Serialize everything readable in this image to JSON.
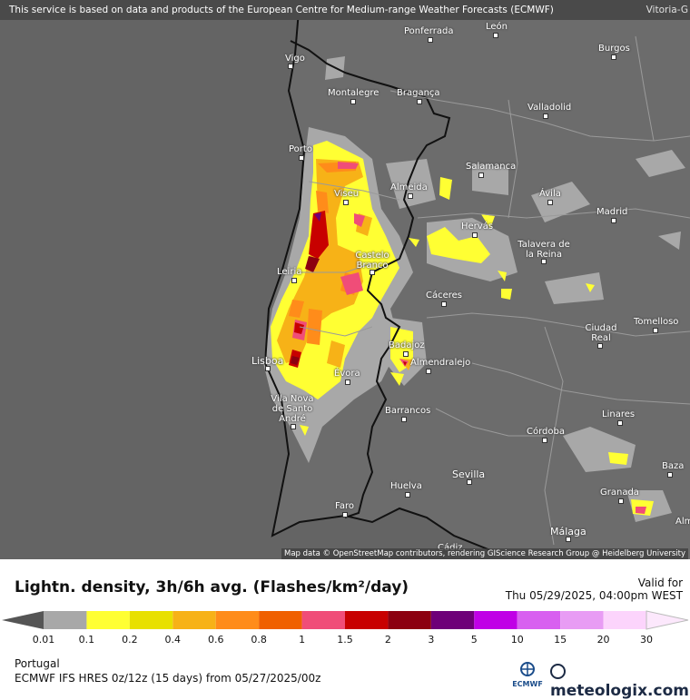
{
  "banner": {
    "text": "This service is based on data and products of the European Centre for Medium-range Weather Forecasts (ECMWF)",
    "corner_label": "Vitoria-G"
  },
  "cities": [
    {
      "key": "ponferrada",
      "name": "Ponferrada"
    },
    {
      "key": "leon",
      "name": "León"
    },
    {
      "key": "burgos",
      "name": "Burgos"
    },
    {
      "key": "vigo",
      "name": "Vigo"
    },
    {
      "key": "montalegre",
      "name": "Montalegre"
    },
    {
      "key": "braganca",
      "name": "Bragança"
    },
    {
      "key": "valladolid",
      "name": "Valladolid"
    },
    {
      "key": "porto",
      "name": "Porto"
    },
    {
      "key": "salamanca",
      "name": "Salamanca"
    },
    {
      "key": "viseu",
      "name": "Viseu"
    },
    {
      "key": "almeida",
      "name": "Almeida"
    },
    {
      "key": "avila",
      "name": "Ávila"
    },
    {
      "key": "madrid",
      "name": "Madrid"
    },
    {
      "key": "hervas",
      "name": "Hervás"
    },
    {
      "key": "talavera",
      "name": "Talavera de la Reina"
    },
    {
      "key": "castelo",
      "name": "Castelo Branco"
    },
    {
      "key": "leiria",
      "name": "Leiria"
    },
    {
      "key": "caceres",
      "name": "Cáceres"
    },
    {
      "key": "ciudadreal",
      "name": "Ciudad Real"
    },
    {
      "key": "tomelloso",
      "name": "Tomelloso"
    },
    {
      "key": "badajoz",
      "name": "Badajoz"
    },
    {
      "key": "almendralejo",
      "name": "Almendralejo"
    },
    {
      "key": "lisboa",
      "name": "Lisboa"
    },
    {
      "key": "evora",
      "name": "Évora"
    },
    {
      "key": "vilanova",
      "name": "Vila Nova de Santo André"
    },
    {
      "key": "barrancos",
      "name": "Barrancos"
    },
    {
      "key": "linares",
      "name": "Linares"
    },
    {
      "key": "cordoba",
      "name": "Córdoba"
    },
    {
      "key": "baza",
      "name": "Baza"
    },
    {
      "key": "sevilla",
      "name": "Sevilla"
    },
    {
      "key": "huelva",
      "name": "Huelva"
    },
    {
      "key": "granada",
      "name": "Granada"
    },
    {
      "key": "faro",
      "name": "Faro"
    },
    {
      "key": "malaga",
      "name": "Málaga"
    },
    {
      "key": "alm",
      "name": "Alm"
    },
    {
      "key": "cadiz",
      "name": "Cádiz"
    }
  ],
  "attribution": "Map data © OpenStreetMap contributors, rendering GIScience Research Group @ Heidelberg University",
  "title": "Lightn. density, 3h/6h avg. (Flashes/km²/day)",
  "valid": {
    "label": "Valid for",
    "time": "Thu 05/29/2025, 04:00pm WEST"
  },
  "legend": {
    "colors": [
      "#a8a8a8",
      "#ffff33",
      "#e8e000",
      "#f7b217",
      "#ff8c1a",
      "#f06000",
      "#f04d78",
      "#c80000",
      "#8c0010",
      "#6e0078",
      "#c000e6",
      "#d860f0",
      "#e89cf4",
      "#fcd4fc"
    ],
    "ticks": [
      "0.01",
      "0.1",
      "0.2",
      "0.4",
      "0.6",
      "0.8",
      "1",
      "1.5",
      "2",
      "3",
      "5",
      "10",
      "15",
      "20",
      "30"
    ]
  },
  "footer": {
    "region": "Portugal",
    "model": "ECMWF IFS HRES 0z/12z (15 days) from  05/27/2025/00z",
    "ecmwf_logo_text": "ECMWF",
    "brand": "meteologix.com"
  }
}
